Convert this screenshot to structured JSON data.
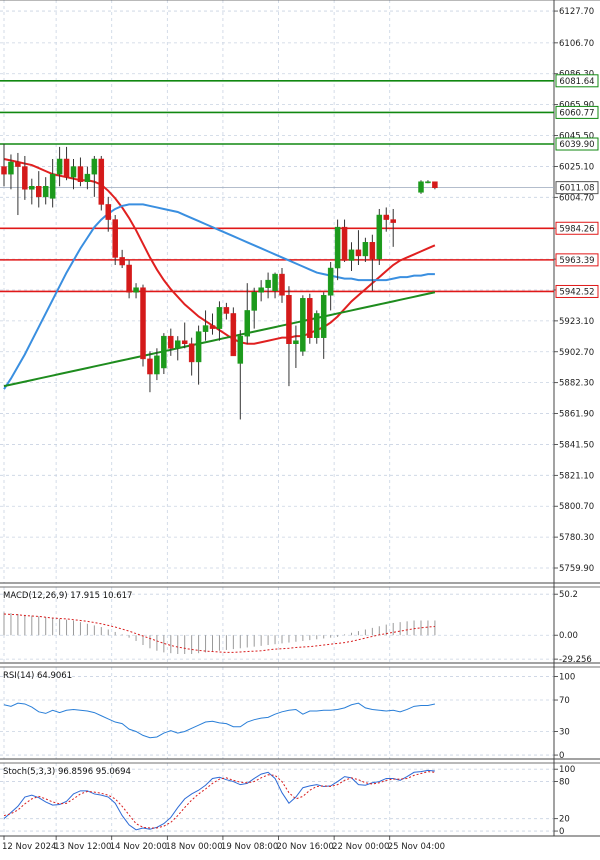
{
  "chart_data": [
    {
      "type": "candlestick",
      "name": "price",
      "ylim": [
        5750,
        6135
      ],
      "y_ticks": [
        "6127.70",
        "6106.70",
        "6086.30",
        "6065.90",
        "6045.50",
        "6025.10",
        "6004.70",
        "5984.30",
        "5963.90",
        "5943.50",
        "5923.10",
        "5902.70",
        "5882.30",
        "5861.90",
        "5841.50",
        "5821.10",
        "5800.70",
        "5780.30",
        "5759.90"
      ],
      "x_ticks": [
        "12 Nov 2024",
        "13 Nov 12:00",
        "14 Nov 20:00",
        "18 Nov 00:00",
        "19 Nov 08:00",
        "20 Nov 16:00",
        "22 Nov 00:00",
        "25 Nov 04:00"
      ],
      "x_tick_bars": [
        0,
        7.5,
        15.5,
        23.5,
        31.5,
        39.5,
        47.5,
        55.5
      ],
      "grid": true,
      "candles": [
        {
          "o": 6025,
          "h": 6040,
          "l": 6012,
          "c": 6020
        },
        {
          "o": 6020,
          "h": 6033,
          "l": 6010,
          "c": 6028
        },
        {
          "o": 6028,
          "h": 6034,
          "l": 5993,
          "c": 6025
        },
        {
          "o": 6025,
          "h": 6032,
          "l": 6003,
          "c": 6010
        },
        {
          "o": 6010,
          "h": 6017,
          "l": 6000,
          "c": 6012
        },
        {
          "o": 6012,
          "h": 6022,
          "l": 5998,
          "c": 6005
        },
        {
          "o": 6005,
          "h": 6018,
          "l": 6000,
          "c": 6012
        },
        {
          "o": 6004,
          "h": 6030,
          "l": 5998,
          "c": 6020
        },
        {
          "o": 6020,
          "h": 6038,
          "l": 6012,
          "c": 6030
        },
        {
          "o": 6030,
          "h": 6038,
          "l": 6016,
          "c": 6018
        },
        {
          "o": 6018,
          "h": 6030,
          "l": 6010,
          "c": 6025
        },
        {
          "o": 6025,
          "h": 6031,
          "l": 6012,
          "c": 6015
        },
        {
          "o": 6015,
          "h": 6025,
          "l": 6010,
          "c": 6020
        },
        {
          "o": 6020,
          "h": 6032,
          "l": 6005,
          "c": 6030
        },
        {
          "o": 6030,
          "h": 6032,
          "l": 5996,
          "c": 6000
        },
        {
          "o": 6000,
          "h": 6005,
          "l": 5982,
          "c": 5990
        },
        {
          "o": 5990,
          "h": 5993,
          "l": 5960,
          "c": 5965
        },
        {
          "o": 5965,
          "h": 5970,
          "l": 5958,
          "c": 5960
        },
        {
          "o": 5960,
          "h": 5963,
          "l": 5938,
          "c": 5942
        },
        {
          "o": 5942,
          "h": 5948,
          "l": 5938,
          "c": 5945
        },
        {
          "o": 5945,
          "h": 5947,
          "l": 5893,
          "c": 5898
        },
        {
          "o": 5898,
          "h": 5903,
          "l": 5876,
          "c": 5888
        },
        {
          "o": 5888,
          "h": 5905,
          "l": 5884,
          "c": 5900
        },
        {
          "o": 5892,
          "h": 5915,
          "l": 5888,
          "c": 5913
        },
        {
          "o": 5913,
          "h": 5918,
          "l": 5900,
          "c": 5905
        },
        {
          "o": 5905,
          "h": 5913,
          "l": 5897,
          "c": 5910
        },
        {
          "o": 5910,
          "h": 5922,
          "l": 5905,
          "c": 5908
        },
        {
          "o": 5908,
          "h": 5912,
          "l": 5887,
          "c": 5896
        },
        {
          "o": 5896,
          "h": 5920,
          "l": 5881,
          "c": 5916
        },
        {
          "o": 5916,
          "h": 5930,
          "l": 5910,
          "c": 5920
        },
        {
          "o": 5920,
          "h": 5928,
          "l": 5914,
          "c": 5918
        },
        {
          "o": 5918,
          "h": 5936,
          "l": 5910,
          "c": 5932
        },
        {
          "o": 5932,
          "h": 5935,
          "l": 5924,
          "c": 5928
        },
        {
          "o": 5928,
          "h": 5932,
          "l": 5900,
          "c": 5900
        },
        {
          "o": 5895,
          "h": 5917,
          "l": 5858,
          "c": 5913
        },
        {
          "o": 5913,
          "h": 5948,
          "l": 5908,
          "c": 5930
        },
        {
          "o": 5930,
          "h": 5945,
          "l": 5918,
          "c": 5942
        },
        {
          "o": 5942,
          "h": 5950,
          "l": 5936,
          "c": 5945
        },
        {
          "o": 5945,
          "h": 5955,
          "l": 5938,
          "c": 5950
        },
        {
          "o": 5943,
          "h": 5955,
          "l": 5938,
          "c": 5954
        },
        {
          "o": 5954,
          "h": 5958,
          "l": 5935,
          "c": 5940
        },
        {
          "o": 5940,
          "h": 5946,
          "l": 5880,
          "c": 5908
        },
        {
          "o": 5908,
          "h": 5920,
          "l": 5892,
          "c": 5910
        },
        {
          "o": 5903,
          "h": 5940,
          "l": 5900,
          "c": 5938
        },
        {
          "o": 5938,
          "h": 5941,
          "l": 5908,
          "c": 5912
        },
        {
          "o": 5912,
          "h": 5930,
          "l": 5908,
          "c": 5928
        },
        {
          "o": 5912,
          "h": 5942,
          "l": 5898,
          "c": 5940
        },
        {
          "o": 5940,
          "h": 5962,
          "l": 5930,
          "c": 5958
        },
        {
          "o": 5958,
          "h": 5990,
          "l": 5950,
          "c": 5985
        },
        {
          "o": 5985,
          "h": 5990,
          "l": 5962,
          "c": 5963
        },
        {
          "o": 5963,
          "h": 5975,
          "l": 5956,
          "c": 5970
        },
        {
          "o": 5970,
          "h": 5983,
          "l": 5960,
          "c": 5966
        },
        {
          "o": 5966,
          "h": 5978,
          "l": 5962,
          "c": 5975
        },
        {
          "o": 5975,
          "h": 5980,
          "l": 5943,
          "c": 5964
        },
        {
          "o": 5964,
          "h": 5997,
          "l": 5960,
          "c": 5993
        },
        {
          "o": 5993,
          "h": 5998,
          "l": 5982,
          "c": 5990
        },
        {
          "o": 5990,
          "h": 5997,
          "l": 5972,
          "c": 5988
        },
        null,
        null,
        null,
        {
          "o": 6008,
          "h": 6016,
          "l": 6007,
          "c": 6015
        },
        {
          "o": 6015,
          "h": 6016,
          "l": 6014,
          "c": 6015
        },
        {
          "o": 6015,
          "h": 6015,
          "l": 6010,
          "c": 6011
        }
      ],
      "series": [
        {
          "color": "#e02020",
          "values": [
            6030,
            6029,
            6028,
            6027,
            6026,
            6024,
            6022,
            6020,
            6019,
            6018,
            6017,
            6016,
            6016,
            6015,
            6013,
            6009,
            6004,
            5998,
            5991,
            5983,
            5974,
            5965,
            5957,
            5950,
            5944,
            5939,
            5934,
            5930,
            5926,
            5923,
            5920,
            5917,
            5914,
            5911,
            5909,
            5908,
            5908,
            5909,
            5910,
            5911,
            5912,
            5912,
            5913,
            5913,
            5915,
            5917,
            5919,
            5922,
            5926,
            5931,
            5936,
            5940,
            5944,
            5948,
            5952,
            5956,
            5960,
            5963,
            5965,
            5967,
            5969,
            5971,
            5973
          ]
        },
        {
          "color": "#3a8fe0",
          "values": [
            5878,
            5885,
            5893,
            5901,
            5910,
            5919,
            5928,
            5937,
            5946,
            5955,
            5963,
            5971,
            5978,
            5985,
            5990,
            5994,
            5997,
            5999,
            6000,
            6000,
            6000,
            5999,
            5998,
            5997,
            5996,
            5995,
            5993,
            5991,
            5989,
            5987,
            5985,
            5983,
            5981,
            5979,
            5977,
            5975,
            5973,
            5971,
            5969,
            5967,
            5965,
            5963,
            5961,
            5959,
            5957,
            5955,
            5954,
            5953,
            5952,
            5951,
            5951,
            5950,
            5950,
            5950,
            5950,
            5950,
            5951,
            5952,
            5952,
            5953,
            5953,
            5954,
            5954
          ]
        },
        {
          "color": "#1e8c1e",
          "values": [
            5880,
            5881,
            5882,
            5883,
            5884,
            5885,
            5886,
            5887,
            5888,
            5889,
            5890,
            5891,
            5892,
            5893,
            5894,
            5895,
            5896,
            5897,
            5898,
            5899,
            5900,
            5901,
            5902,
            5903,
            5904,
            5905,
            5906,
            5907,
            5908,
            5909,
            5910,
            5911,
            5912,
            5913,
            5914,
            5915,
            5916,
            5917,
            5918,
            5919,
            5920,
            5921,
            5922,
            5923,
            5924,
            5925,
            5926,
            5927,
            5928,
            5929,
            5930,
            5931,
            5932,
            5933,
            5934,
            5935,
            5936,
            5937,
            5938,
            5939,
            5940,
            5941,
            5942
          ]
        }
      ],
      "hlines": [
        {
          "value": 6081.64,
          "label": "6081.64",
          "color": "#118811"
        },
        {
          "value": 6060.77,
          "label": "6060.77",
          "color": "#118811"
        },
        {
          "value": 6039.9,
          "label": "6039.90",
          "color": "#118811"
        },
        {
          "value": 5984.26,
          "label": "5984.26",
          "color": "#e01818"
        },
        {
          "value": 5963.39,
          "label": "5963.39",
          "color": "#e01818"
        },
        {
          "value": 5942.52,
          "label": "5942.52",
          "color": "#e01818"
        }
      ],
      "current": {
        "value": 6011.08,
        "label": "6011.08"
      }
    },
    {
      "type": "bar",
      "name": "macd",
      "title": "MACD(12,26,9) 17.915 10.617",
      "ylim": [
        -34,
        59
      ],
      "y_ticks": [
        "50.2",
        "0.00",
        "-29.256"
      ],
      "y_tick_values": [
        50.2,
        0,
        -29.256
      ],
      "histogram": [
        28,
        27,
        26,
        25,
        24,
        23,
        22,
        21,
        20,
        19,
        18,
        16,
        14,
        12,
        10,
        7,
        4,
        1,
        -3,
        -7,
        -12,
        -16,
        -19,
        -21,
        -22,
        -23,
        -23,
        -23,
        -22,
        -21,
        -20,
        -19,
        -18,
        -17,
        -16,
        -15,
        -14,
        -13,
        -12,
        -11,
        -10,
        -9,
        -8,
        -7,
        -6,
        -5,
        -4,
        -3,
        -2,
        1,
        3,
        5,
        7,
        9,
        11,
        13,
        15,
        16,
        17,
        18,
        18,
        18,
        18
      ],
      "signal": [
        26,
        25.5,
        25,
        24,
        23.5,
        23,
        22,
        21,
        20.5,
        20,
        19,
        18,
        17,
        15.5,
        14,
        12,
        10,
        7.5,
        5,
        2,
        -1,
        -4,
        -7,
        -10,
        -12.5,
        -14.5,
        -16,
        -17.5,
        -18.5,
        -19.5,
        -20,
        -20.5,
        -21,
        -21,
        -20.5,
        -20,
        -19.5,
        -19,
        -18,
        -17,
        -16.5,
        -16,
        -15,
        -14.5,
        -14,
        -13,
        -12,
        -11,
        -10,
        -9,
        -7.5,
        -5.5,
        -3.5,
        -1.5,
        0.5,
        2,
        3.5,
        5,
        6.5,
        8,
        9,
        10,
        10.6
      ]
    },
    {
      "type": "line",
      "name": "rsi",
      "title": "RSI(14) 64.9061",
      "ylim": [
        -5,
        112
      ],
      "y_ticks": [
        "100",
        "70",
        "30",
        "0"
      ],
      "y_tick_values": [
        100,
        70,
        30,
        0
      ],
      "values": [
        64,
        62,
        66,
        65,
        61,
        55,
        53,
        57,
        54,
        57,
        58,
        57,
        56,
        54,
        50,
        46,
        42,
        40,
        33,
        30,
        25,
        22,
        23,
        28,
        31,
        28,
        30,
        34,
        38,
        42,
        43,
        41,
        40,
        36,
        36,
        42,
        45,
        47,
        48,
        52,
        55,
        57,
        58,
        52,
        56,
        56,
        57,
        57,
        58,
        60,
        64,
        66,
        60,
        58,
        57,
        56,
        57,
        55,
        58,
        62,
        63,
        63,
        65
      ]
    },
    {
      "type": "line",
      "name": "stoch",
      "title": "Stoch(5,3,3) 96.8596 95.0694",
      "ylim": [
        -8,
        110
      ],
      "y_ticks": [
        "100",
        "80",
        "20",
        "0"
      ],
      "y_tick_values": [
        100,
        80,
        20,
        0
      ],
      "series": [
        {
          "color": "#2e6bd6",
          "values": [
            20,
            30,
            40,
            55,
            58,
            54,
            47,
            42,
            43,
            48,
            60,
            65,
            65,
            60,
            58,
            55,
            45,
            25,
            10,
            2,
            5,
            3,
            6,
            12,
            22,
            38,
            52,
            60,
            66,
            74,
            85,
            87,
            83,
            80,
            75,
            77,
            85,
            92,
            95,
            85,
            62,
            45,
            55,
            70,
            73,
            75,
            72,
            73,
            80,
            88,
            86,
            75,
            74,
            78,
            80,
            85,
            85,
            82,
            88,
            95,
            96,
            98,
            97
          ]
        },
        {
          "color": "#d81c1c",
          "values": [
            25,
            28,
            34,
            44,
            52,
            56,
            52,
            47,
            44,
            45,
            52,
            60,
            64,
            63,
            61,
            58,
            52,
            40,
            26,
            12,
            6,
            5,
            5,
            8,
            14,
            25,
            38,
            50,
            60,
            68,
            77,
            84,
            86,
            82,
            79,
            78,
            80,
            86,
            91,
            90,
            80,
            62,
            52,
            56,
            66,
            72,
            73,
            72,
            75,
            82,
            86,
            83,
            78,
            76,
            78,
            82,
            84,
            84,
            85,
            90,
            93,
            96,
            95
          ]
        }
      ]
    }
  ]
}
